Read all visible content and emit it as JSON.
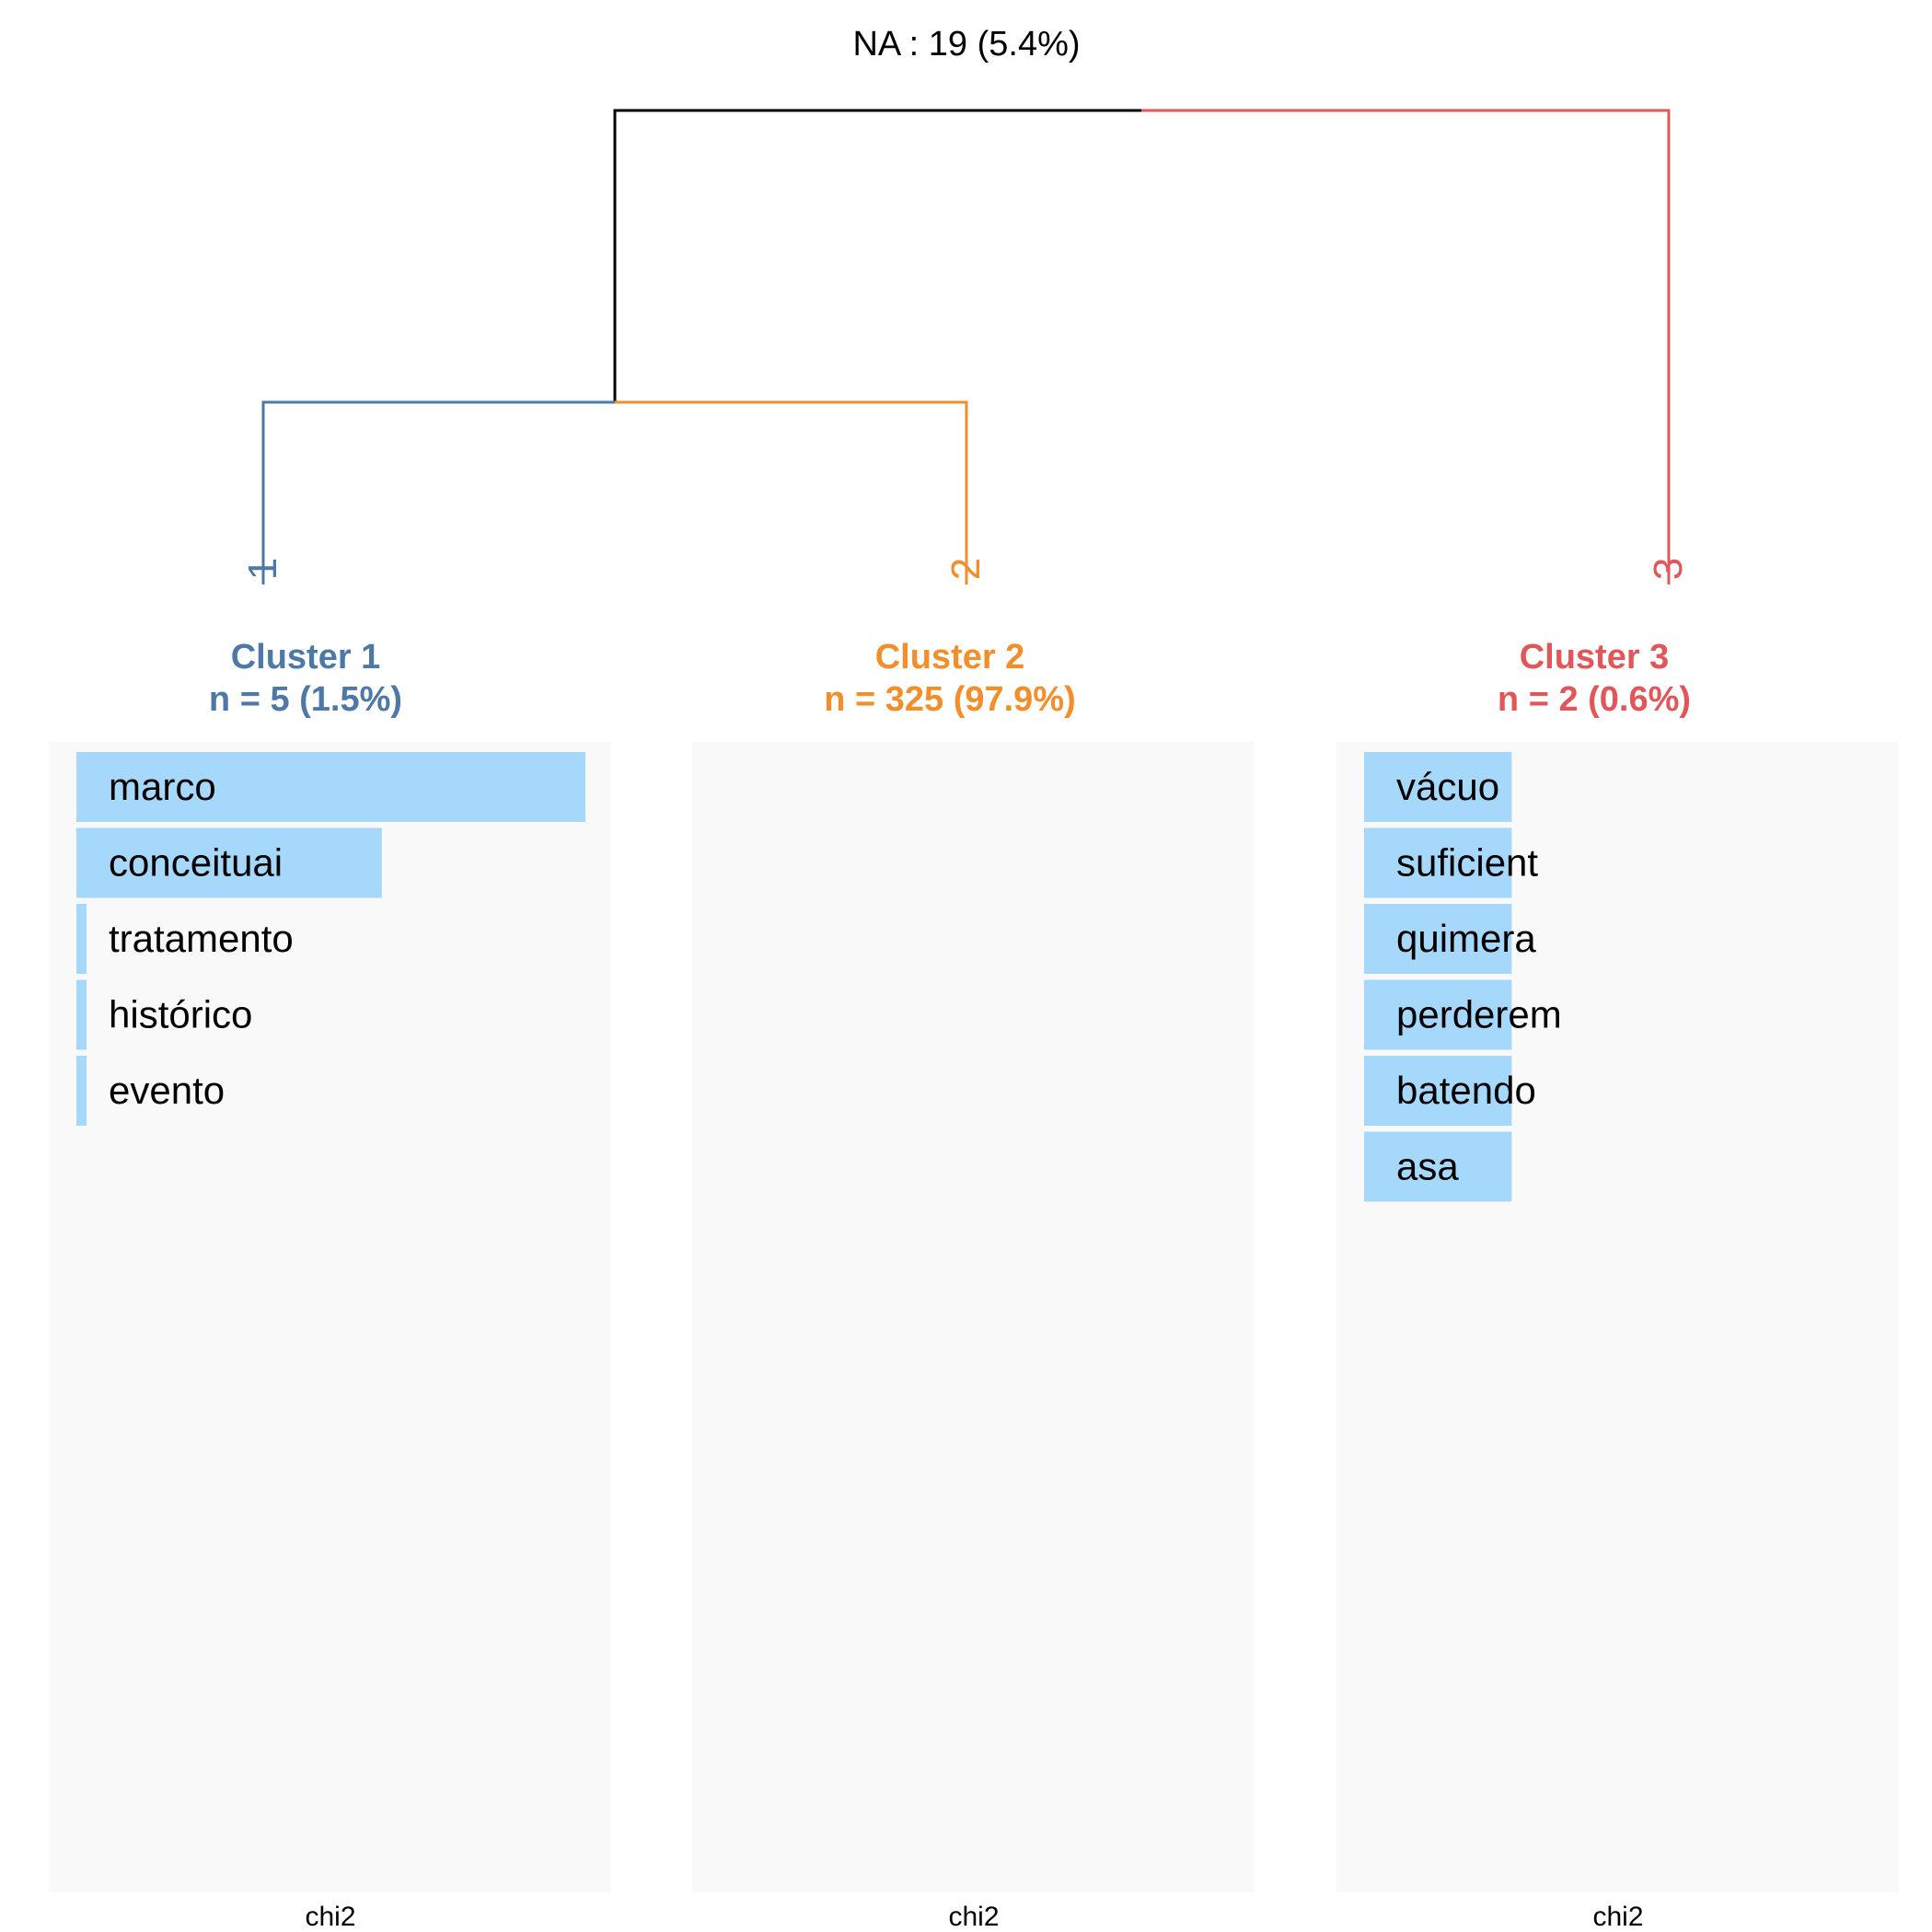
{
  "na_label": "NA : 19 (5.4%)",
  "colors": {
    "root": "#000000",
    "cluster1": "#4e79a7",
    "cluster2": "#f28e2b",
    "cluster3": "#e15759",
    "bar": "#a6d8fb",
    "panel": "#f9f9f9"
  },
  "tree": {
    "leaf_labels": [
      "1",
      "2",
      "3"
    ]
  },
  "clusters": [
    {
      "id": 1,
      "title": "Cluster 1",
      "size_label": "n = 5 (1.5%)",
      "axis_label": "chi2",
      "terms": [
        {
          "term": "marco",
          "value": 1.0
        },
        {
          "term": "conceituai",
          "value": 0.6
        },
        {
          "term": "tratamento",
          "value": 0.02
        },
        {
          "term": "histórico",
          "value": 0.02
        },
        {
          "term": "evento",
          "value": 0.02
        }
      ]
    },
    {
      "id": 2,
      "title": "Cluster 2",
      "size_label": "n = 325 (97.9%)",
      "axis_label": "chi2",
      "terms": []
    },
    {
      "id": 3,
      "title": "Cluster 3",
      "size_label": "n = 2 (0.6%)",
      "axis_label": "chi2",
      "terms": [
        {
          "term": "vácuo",
          "value": 0.29
        },
        {
          "term": "suficient",
          "value": 0.29
        },
        {
          "term": "quimera",
          "value": 0.29
        },
        {
          "term": "perderem",
          "value": 0.29
        },
        {
          "term": "batendo",
          "value": 0.29
        },
        {
          "term": "asa",
          "value": 0.29
        }
      ]
    }
  ]
}
